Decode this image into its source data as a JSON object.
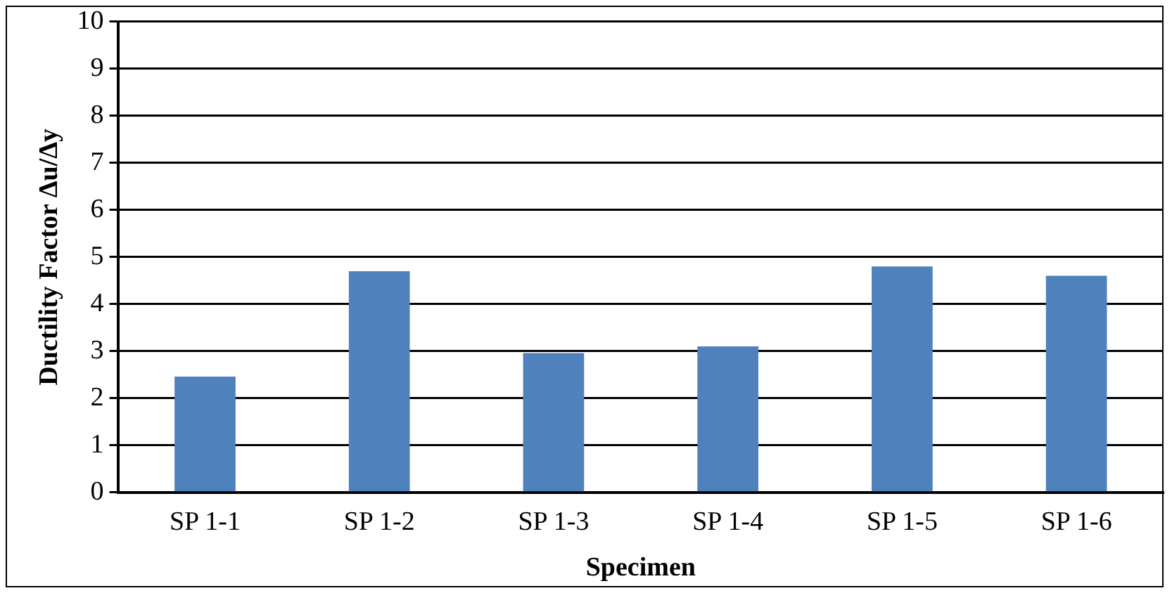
{
  "chart_data": {
    "type": "bar",
    "xlabel": "Specimen",
    "ylabel": "Ductility Factor Δu/Δy",
    "categories": [
      "SP 1-1",
      "SP 1-2",
      "SP 1-3",
      "SP 1-4",
      "SP 1-5",
      "SP 1-6"
    ],
    "values": [
      2.46,
      4.7,
      2.96,
      3.1,
      4.8,
      4.6
    ],
    "color": "#4f81bd",
    "ylim": [
      0,
      10
    ],
    "yticks": [
      0,
      1,
      2,
      3,
      4,
      5,
      6,
      7,
      8,
      9,
      10
    ],
    "grid": "y",
    "legend": false
  }
}
